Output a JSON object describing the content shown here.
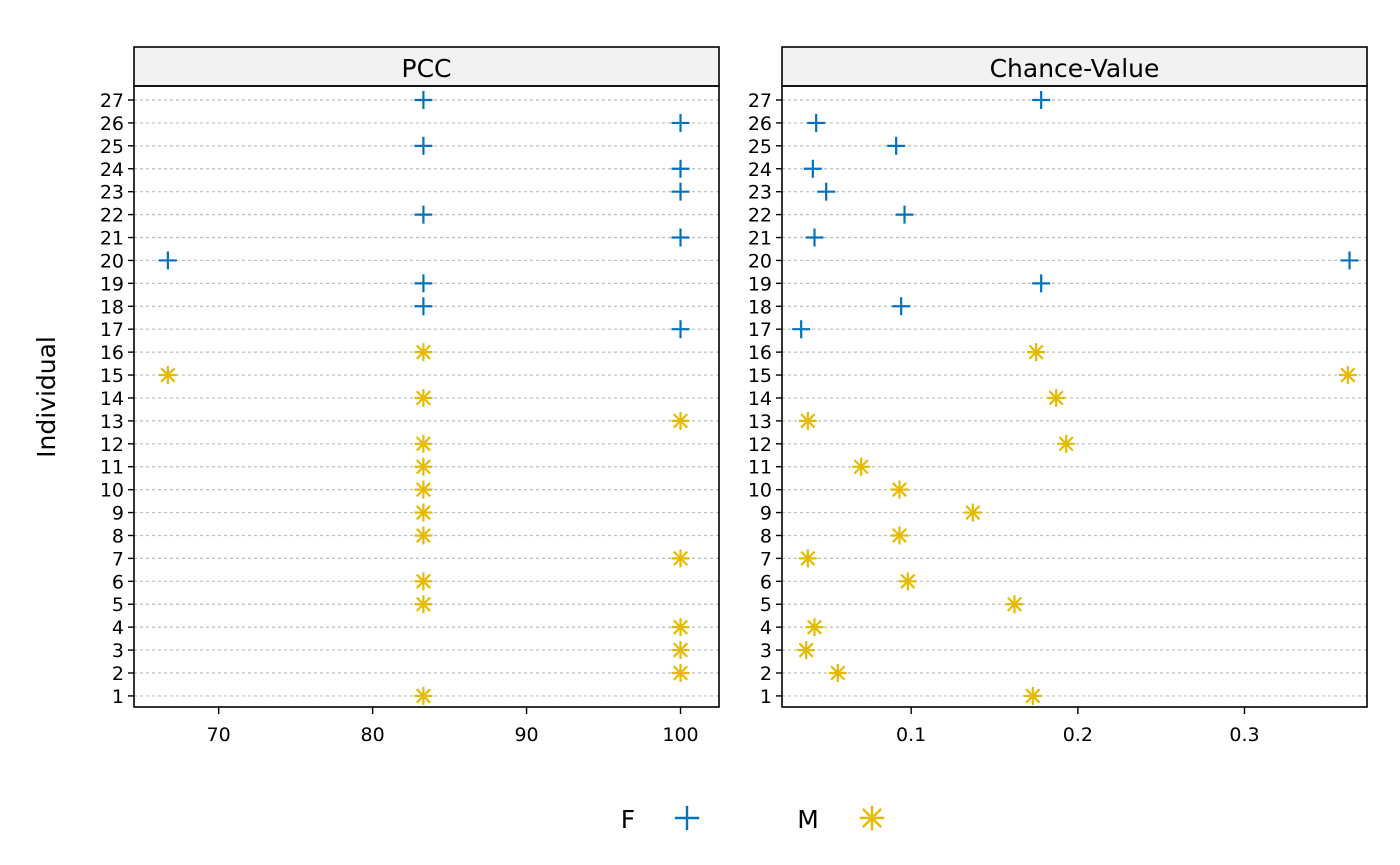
{
  "chart_data": {
    "type": "scatter",
    "ylabel": "Individual",
    "categories": [
      "1",
      "2",
      "3",
      "4",
      "5",
      "6",
      "7",
      "8",
      "9",
      "10",
      "11",
      "12",
      "13",
      "14",
      "15",
      "16",
      "17",
      "18",
      "19",
      "20",
      "21",
      "22",
      "23",
      "24",
      "25",
      "26",
      "27"
    ],
    "group_of": [
      "M",
      "M",
      "M",
      "M",
      "M",
      "M",
      "M",
      "M",
      "M",
      "M",
      "M",
      "M",
      "M",
      "M",
      "M",
      "M",
      "F",
      "F",
      "F",
      "F",
      "F",
      "F",
      "F",
      "F",
      "F",
      "F",
      "F"
    ],
    "colors": {
      "F": "#0072BD",
      "M": "#E6BA00"
    },
    "legend": [
      {
        "name": "F",
        "marker": "plus",
        "color": "#0072BD"
      },
      {
        "name": "M",
        "marker": "asterisk",
        "color": "#E6BA00"
      }
    ],
    "legend_position": "bottom",
    "grid": "horizontal-dashed",
    "panels": [
      {
        "title": "PCC",
        "xlim": [
          64.5,
          102.5
        ],
        "ticks": [
          70,
          80,
          90,
          100
        ],
        "values": [
          83.3,
          100,
          100,
          100,
          83.3,
          83.3,
          100,
          83.3,
          83.3,
          83.3,
          83.3,
          83.3,
          100,
          83.3,
          66.7,
          83.3,
          100,
          83.3,
          83.3,
          66.7,
          100,
          83.3,
          100,
          100,
          83.3,
          100,
          83.3
        ]
      },
      {
        "title": "Chance-Value",
        "xlim": [
          0.0225,
          0.3735
        ],
        "ticks": [
          0.1,
          0.2,
          0.3
        ],
        "tick_labels": [
          "0.1",
          "0.2",
          "0.3"
        ],
        "values": [
          0.173,
          0.056,
          0.037,
          0.042,
          0.162,
          0.098,
          0.038,
          0.093,
          0.137,
          0.093,
          0.07,
          0.193,
          0.038,
          0.187,
          0.362,
          0.175,
          0.034,
          0.094,
          0.178,
          0.363,
          0.042,
          0.096,
          0.049,
          0.041,
          0.091,
          0.043,
          0.178
        ]
      }
    ]
  }
}
